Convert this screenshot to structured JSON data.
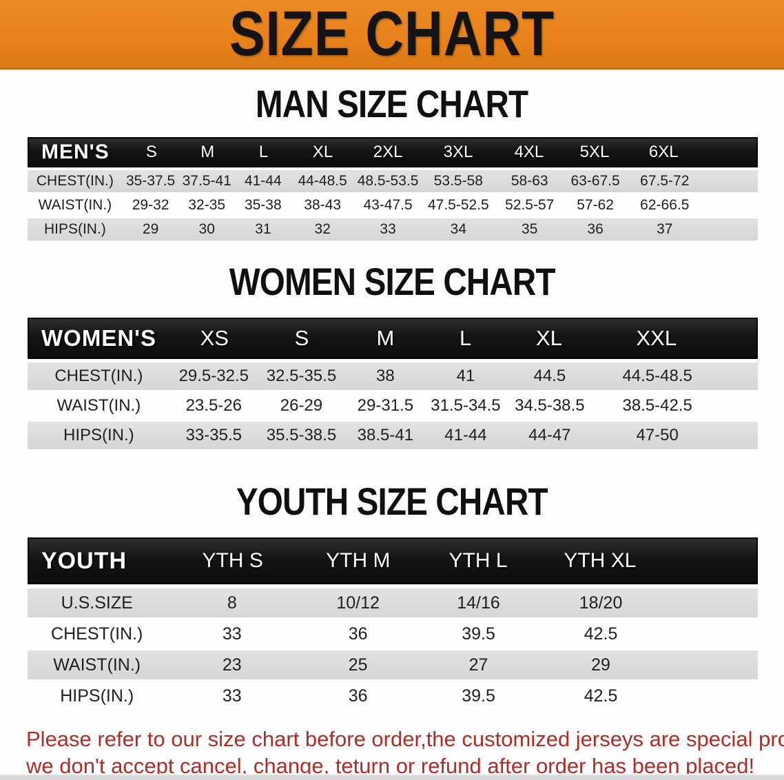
{
  "banner": {
    "title": "SIZE CHART",
    "bg_color": "#E8821D",
    "text_color": "#161412"
  },
  "sections": [
    {
      "heading": "MAN SIZE CHART",
      "table": {
        "label": "MEN'S",
        "sizes": [
          "S",
          "M",
          "L",
          "XL",
          "2XL",
          "3XL",
          "4XL",
          "5XL",
          "6XL"
        ],
        "rows": [
          {
            "label": "CHEST(IN.)",
            "values": [
              "35-37.5",
              "37.5-41",
              "41-44",
              "44-48.5",
              "48.5-53.5",
              "53.5-58",
              "58-63",
              "63-67.5",
              "67.5-72"
            ]
          },
          {
            "label": "WAIST(IN.)",
            "values": [
              "29-32",
              "32-35",
              "35-38",
              "38-43",
              "43-47.5",
              "47.5-52.5",
              "52.5-57",
              "57-62",
              "62-66.5"
            ]
          },
          {
            "label": "HIPS(IN.)",
            "values": [
              "29",
              "30",
              "31",
              "32",
              "33",
              "34",
              "35",
              "36",
              "37"
            ]
          }
        ]
      }
    },
    {
      "heading": "WOMEN SIZE CHART",
      "table": {
        "label": "WOMEN'S",
        "sizes": [
          "XS",
          "S",
          "M",
          "L",
          "XL",
          "XXL"
        ],
        "rows": [
          {
            "label": "CHEST(IN.)",
            "values": [
              "29.5-32.5",
              "32.5-35.5",
              "38",
              "41",
              "44.5",
              "44.5-48.5"
            ]
          },
          {
            "label": "WAIST(IN.)",
            "values": [
              "23.5-26",
              "26-29",
              "29-31.5",
              "31.5-34.5",
              "34.5-38.5",
              "38.5-42.5"
            ]
          },
          {
            "label": "HIPS(IN.)",
            "values": [
              "33-35.5",
              "35.5-38.5",
              "38.5-41",
              "41-44",
              "44-47",
              "47-50"
            ]
          }
        ]
      }
    },
    {
      "heading": "YOUTH SIZE CHART",
      "table": {
        "label": "YOUTH",
        "sizes": [
          "YTH S",
          "YTH M",
          "YTH L",
          "YTH XL"
        ],
        "rows": [
          {
            "label": "U.S.SIZE",
            "values": [
              "8",
              "10/12",
              "14/16",
              "18/20"
            ]
          },
          {
            "label": "CHEST(IN.)",
            "values": [
              "33",
              "36",
              "39.5",
              "42.5"
            ]
          },
          {
            "label": "WAIST(IN.)",
            "values": [
              "23",
              "25",
              "27",
              "29"
            ]
          },
          {
            "label": "HIPS(IN.)",
            "values": [
              "33",
              "36",
              "39.5",
              "42.5"
            ]
          }
        ]
      }
    }
  ],
  "disclaimer": {
    "line1": "Please refer to our size chart before order,the customized jerseys are special products,",
    "line2": "we don't accept cancel, change, teturn or refund after order has been placed!",
    "color": "#AE2D26"
  }
}
